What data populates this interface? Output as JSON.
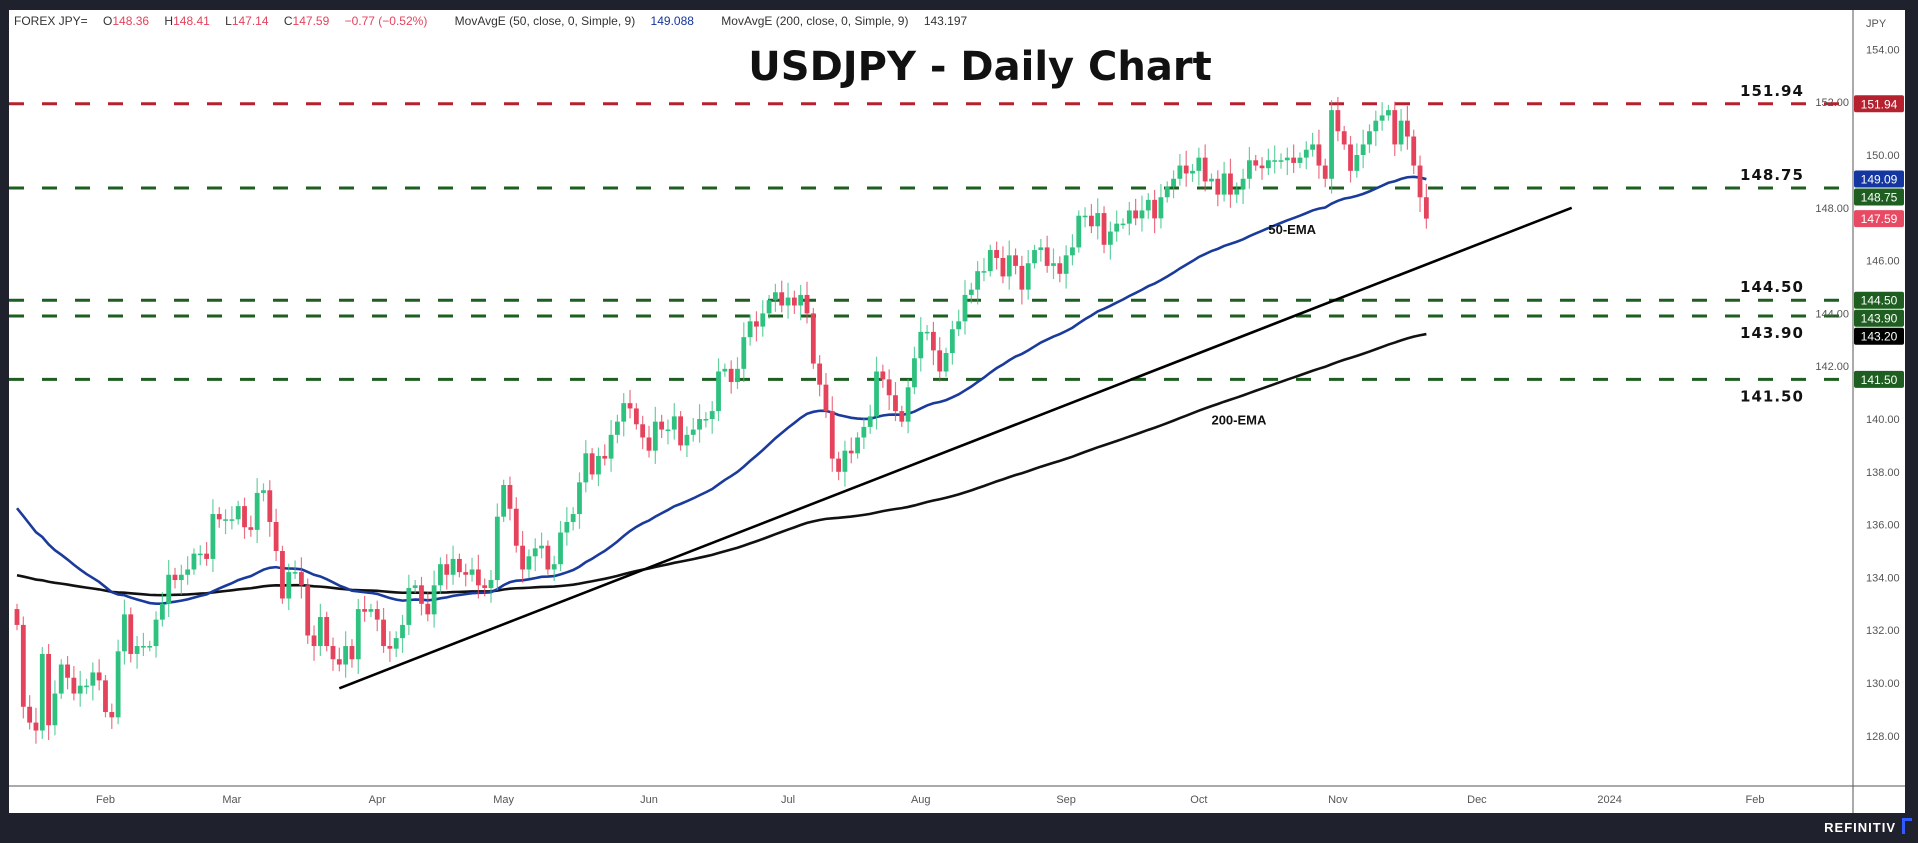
{
  "header": {
    "symbol": "FOREX JPY=",
    "o_label": "O",
    "open": "148.36",
    "h_label": "H",
    "high": "148.41",
    "l_label": "L",
    "low": "147.14",
    "c_label": "C",
    "close": "147.59",
    "change": "−0.77 (−0.52%)",
    "ma50_label": "MovAvgE (50, close, 0, Simple, 9)",
    "ma50_value": "149.088",
    "ma200_label": "MovAvgE (200, close, 0, Simple, 9)",
    "ma200_value": "143.197"
  },
  "brand": "REFINITIV",
  "colors": {
    "up": "#2fc17f",
    "down": "#e5425c",
    "ema50": "#1a3a9c",
    "ema200": "#111111",
    "resistance": "#b5212f",
    "support": "#1e5e20"
  },
  "chart_data": {
    "type": "candlestick",
    "title": "USDJPY - Daily Chart",
    "ylabel": "JPY",
    "ylim": [
      126.5,
      155
    ],
    "yticks": [
      "128.00",
      "130.00",
      "132.00",
      "134.00",
      "136.00",
      "138.00",
      "140.00",
      "142.00",
      "144.00",
      "146.00",
      "148.00",
      "150.00",
      "152.00",
      "154.00"
    ],
    "start_date": "2023-01-12",
    "xticks": [
      {
        "label": "Feb",
        "date": "2023-02-01"
      },
      {
        "label": "Mar",
        "date": "2023-03-01"
      },
      {
        "label": "Apr",
        "date": "2023-04-03"
      },
      {
        "label": "May",
        "date": "2023-05-01"
      },
      {
        "label": "Jun",
        "date": "2023-06-01"
      },
      {
        "label": "Jul",
        "date": "2023-07-03"
      },
      {
        "label": "Aug",
        "date": "2023-08-01"
      },
      {
        "label": "Sep",
        "date": "2023-09-01"
      },
      {
        "label": "Oct",
        "date": "2023-10-02"
      },
      {
        "label": "Nov",
        "date": "2023-11-01"
      },
      {
        "label": "Dec",
        "date": "2023-12-01"
      },
      {
        "label": "2024",
        "date": "2024-01-01"
      },
      {
        "label": "Feb",
        "date": "2024-02-01"
      }
    ],
    "closes": [
      132.2,
      129.1,
      128.5,
      128.2,
      131.1,
      128.4,
      129.6,
      130.7,
      130.2,
      129.6,
      129.9,
      129.9,
      130.4,
      130.1,
      128.9,
      128.7,
      131.2,
      132.6,
      131.1,
      131.4,
      131.4,
      131.4,
      132.4,
      133.0,
      134.1,
      133.9,
      134.1,
      134.3,
      134.9,
      134.9,
      134.7,
      136.4,
      136.2,
      136.2,
      136.2,
      136.7,
      135.9,
      135.8,
      137.2,
      137.3,
      136.1,
      135.0,
      133.2,
      134.2,
      134.2,
      133.7,
      131.8,
      131.4,
      132.5,
      131.4,
      130.9,
      130.7,
      131.4,
      130.9,
      132.8,
      132.7,
      132.8,
      132.4,
      131.4,
      131.3,
      131.7,
      132.2,
      133.6,
      133.7,
      133.0,
      132.6,
      133.7,
      134.5,
      134.1,
      134.7,
      134.2,
      134.1,
      134.3,
      133.7,
      133.6,
      133.9,
      136.3,
      137.5,
      136.6,
      135.2,
      134.3,
      134.8,
      135.1,
      135.2,
      134.3,
      134.5,
      135.7,
      136.1,
      136.4,
      137.6,
      138.7,
      137.9,
      138.6,
      138.5,
      139.4,
      139.9,
      140.6,
      140.4,
      139.8,
      139.3,
      138.8,
      139.9,
      139.6,
      139.6,
      140.1,
      139.0,
      139.4,
      139.6,
      140.0,
      140.0,
      140.3,
      141.8,
      141.9,
      141.4,
      141.9,
      143.1,
      143.7,
      143.5,
      144.0,
      144.5,
      144.8,
      144.3,
      144.6,
      144.3,
      144.7,
      144.0,
      142.1,
      141.3,
      140.3,
      138.5,
      138.0,
      138.8,
      138.7,
      139.3,
      139.7,
      140.1,
      141.8,
      141.5,
      140.9,
      140.3,
      139.9,
      141.2,
      142.3,
      143.3,
      143.3,
      142.6,
      141.8,
      142.5,
      143.4,
      143.7,
      144.7,
      144.9,
      145.6,
      145.6,
      146.4,
      146.1,
      145.4,
      146.2,
      145.8,
      144.9,
      145.9,
      146.4,
      146.5,
      145.8,
      145.9,
      145.5,
      146.2,
      146.5,
      147.7,
      147.7,
      147.3,
      147.8,
      146.6,
      147.1,
      147.4,
      147.4,
      147.9,
      147.6,
      147.9,
      148.3,
      147.6,
      148.4,
      148.8,
      149.1,
      149.6,
      149.3,
      149.4,
      149.9,
      149.0,
      149.1,
      148.5,
      149.3,
      148.5,
      148.7,
      149.1,
      149.8,
      149.6,
      149.5,
      149.8,
      149.8,
      149.8,
      149.9,
      149.7,
      149.9,
      150.2,
      150.4,
      149.6,
      149.1,
      151.7,
      150.9,
      150.4,
      149.4,
      150.0,
      150.4,
      150.9,
      151.3,
      151.5,
      151.7,
      150.4,
      151.3,
      150.7,
      149.6,
      148.4,
      147.59
    ],
    "ema50_seed": 136.8,
    "ema200_seed": 134.1,
    "series": [
      {
        "name": "50-EMA",
        "period": 50
      },
      {
        "name": "200-EMA",
        "period": 200
      }
    ],
    "annotations": [
      {
        "text": "50-EMA",
        "date": "2023-10-17",
        "price": 147.0
      },
      {
        "text": "200-EMA",
        "date": "2023-10-04",
        "price": 139.8
      }
    ],
    "trendline": [
      {
        "date": "2023-03-24",
        "price": 129.8
      },
      {
        "date": "2023-12-22",
        "price": 148.0
      }
    ],
    "levels": [
      {
        "value": 151.94,
        "label": "151.94",
        "kind": "resistance",
        "label_pos": "above"
      },
      {
        "value": 148.75,
        "label": "148.75",
        "kind": "support",
        "label_pos": "above"
      },
      {
        "value": 144.5,
        "label": "144.50",
        "kind": "support",
        "label_pos": "above"
      },
      {
        "value": 143.9,
        "label": "143.90",
        "kind": "support",
        "label_pos": "below"
      },
      {
        "value": 141.5,
        "label": "141.50",
        "kind": "support",
        "label_pos": "below"
      }
    ],
    "axis_tags": [
      {
        "label": "151.94",
        "value": 151.94,
        "color": "#b5212f"
      },
      {
        "label": "149.09",
        "value": 149.09,
        "color": "#1336a0"
      },
      {
        "label": "148.75",
        "value": 148.75,
        "color": "#1e5e20"
      },
      {
        "label": "147.59",
        "value": 147.59,
        "color": "#e84a64"
      },
      {
        "label": "144.50",
        "value": 144.5,
        "color": "#1e5e20"
      },
      {
        "label": "143.90",
        "value": 143.9,
        "color": "#1e5e20"
      },
      {
        "label": "143.20",
        "value": 143.2,
        "color": "#000000"
      },
      {
        "label": "141.50",
        "value": 141.5,
        "color": "#1e5e20"
      }
    ]
  }
}
